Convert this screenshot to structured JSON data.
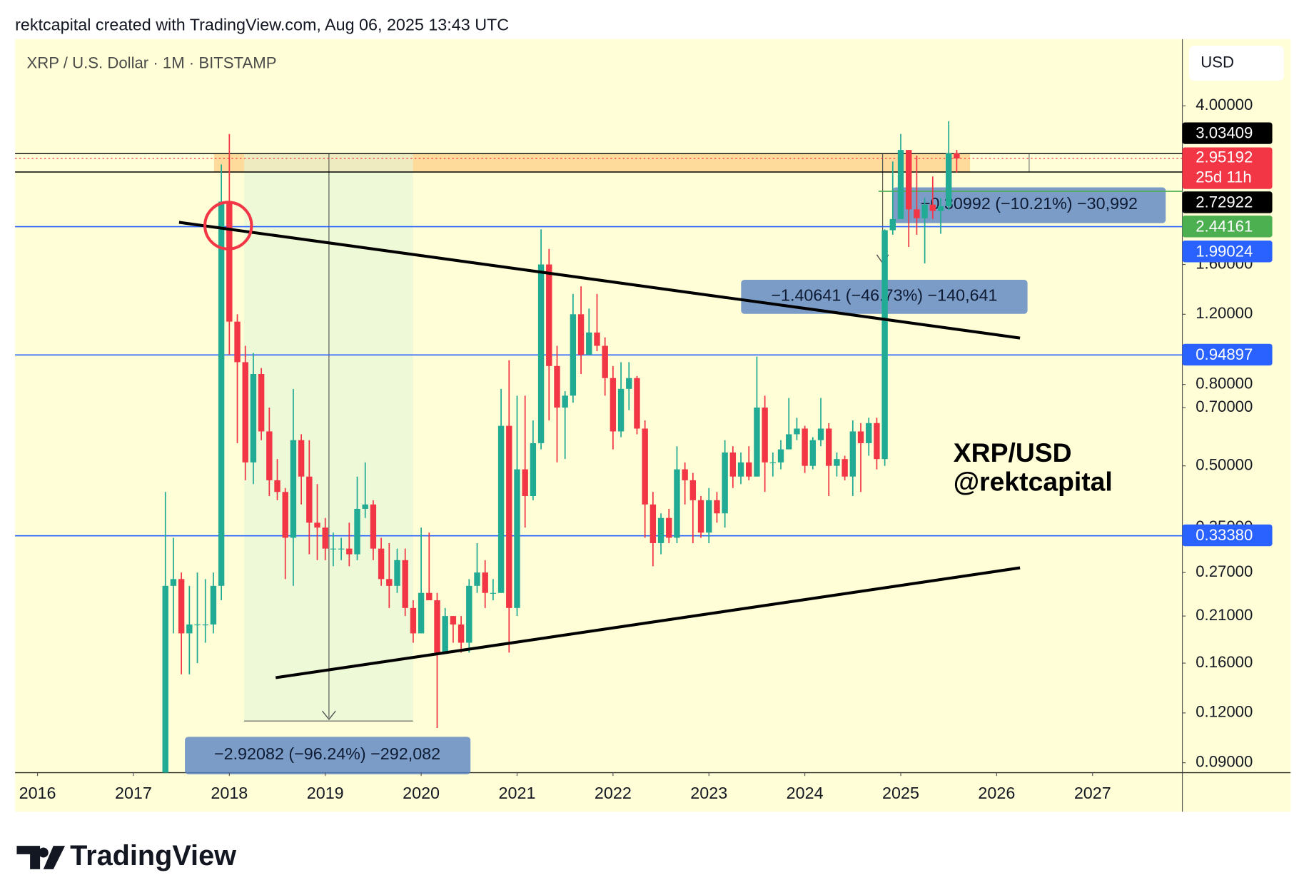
{
  "header": {
    "text": "rektcapital created with TradingView.com, Aug 06, 2025 13:43 UTC"
  },
  "footer": {
    "brand": "TradingView"
  },
  "chart_data": {
    "type": "candlestick",
    "title": "XRP / U.S. Dollar · 1M · BITSTAMP",
    "currency": "USD",
    "log_scale": true,
    "grid": false,
    "up_color": "#22ab94",
    "down_color": "#f23645",
    "xlim": [
      2015.766,
      2027.936
    ],
    "xticks": [
      2016,
      2017,
      2018,
      2019,
      2020,
      2021,
      2022,
      2023,
      2024,
      2025,
      2026,
      2027
    ],
    "ylim": [
      0.085,
      5.88
    ],
    "yticks": [
      {
        "value": 4.0,
        "label": "4.00000"
      },
      {
        "value": 1.6,
        "label": "1.60000"
      },
      {
        "value": 1.2,
        "label": "1.20000"
      },
      {
        "value": 0.8,
        "label": "0.80000"
      },
      {
        "value": 0.7,
        "label": "0.70000"
      },
      {
        "value": 0.5,
        "label": "0.50000"
      },
      {
        "value": 0.35,
        "label": "0.35000"
      },
      {
        "value": 0.27,
        "label": "0.27000"
      },
      {
        "value": 0.21,
        "label": "0.21000"
      },
      {
        "value": 0.16,
        "label": "0.16000"
      },
      {
        "value": 0.12,
        "label": "0.12000"
      },
      {
        "value": 0.09,
        "label": "0.09000"
      }
    ],
    "levels": [
      {
        "value": 3.03409,
        "label": "3.03409",
        "color": "#000000"
      },
      {
        "value": 2.72922,
        "label": "2.72922",
        "color": "#000000"
      },
      {
        "value": 2.44161,
        "label": "2.44161",
        "color": "#4caf50"
      },
      {
        "value": 1.99024,
        "label": "1.99024",
        "color": "#2962ff"
      },
      {
        "value": 0.94897,
        "label": "0.94897",
        "color": "#2962ff"
      },
      {
        "value": 0.3338,
        "label": "0.33380",
        "color": "#2962ff"
      }
    ],
    "countdown": "25d 11h",
    "annotations": [
      "−2.92082 (−96.24%) −292,082",
      "−1.40641 (−46.73%) −140,641",
      "−0.30992 (−10.21%) −30,992",
      "XRP/USD",
      "@rektcapital"
    ],
    "x": [
      "2017-05",
      "2017-06",
      "2017-07",
      "2017-08",
      "2017-09",
      "2017-10",
      "2017-11",
      "2017-12",
      "2018-01",
      "2018-02",
      "2018-03",
      "2018-04",
      "2018-05",
      "2018-06",
      "2018-07",
      "2018-08",
      "2018-09",
      "2018-10",
      "2018-11",
      "2018-12",
      "2019-01",
      "2019-02",
      "2019-03",
      "2019-04",
      "2019-05",
      "2019-06",
      "2019-07",
      "2019-08",
      "2019-09",
      "2019-10",
      "2019-11",
      "2019-12",
      "2020-01",
      "2020-02",
      "2020-03",
      "2020-04",
      "2020-05",
      "2020-06",
      "2020-07",
      "2020-08",
      "2020-09",
      "2020-10",
      "2020-11",
      "2020-12",
      "2021-01",
      "2021-02",
      "2021-03",
      "2021-04",
      "2021-05",
      "2021-06",
      "2021-07",
      "2021-08",
      "2021-09",
      "2021-10",
      "2021-11",
      "2021-12",
      "2022-01",
      "2022-02",
      "2022-03",
      "2022-04",
      "2022-05",
      "2022-06",
      "2022-07",
      "2022-08",
      "2022-09",
      "2022-10",
      "2022-11",
      "2022-12",
      "2023-01",
      "2023-02",
      "2023-03",
      "2023-04",
      "2023-05",
      "2023-06",
      "2023-07",
      "2023-08",
      "2023-09",
      "2023-10",
      "2023-11",
      "2023-12",
      "2024-01",
      "2024-02",
      "2024-03",
      "2024-04",
      "2024-05",
      "2024-06",
      "2024-07",
      "2024-08",
      "2024-09",
      "2024-10",
      "2024-11",
      "2024-12",
      "2025-01",
      "2025-02",
      "2025-03",
      "2025-04",
      "2025-05",
      "2025-06",
      "2025-07",
      "2025-08"
    ],
    "ohlc": [
      [
        0.055,
        0.43,
        0.05,
        0.25
      ],
      [
        0.25,
        0.33,
        0.19,
        0.26
      ],
      [
        0.26,
        0.27,
        0.15,
        0.19
      ],
      [
        0.19,
        0.25,
        0.15,
        0.2
      ],
      [
        0.2,
        0.27,
        0.16,
        0.2
      ],
      [
        0.2,
        0.26,
        0.18,
        0.2
      ],
      [
        0.2,
        0.27,
        0.19,
        0.25
      ],
      [
        0.25,
        2.85,
        0.23,
        2.3
      ],
      [
        2.3,
        3.4,
        0.95,
        1.15
      ],
      [
        1.15,
        1.2,
        0.57,
        0.91
      ],
      [
        0.91,
        1.0,
        0.46,
        0.51
      ],
      [
        0.51,
        0.96,
        0.45,
        0.85
      ],
      [
        0.85,
        0.88,
        0.58,
        0.61
      ],
      [
        0.61,
        0.7,
        0.42,
        0.46
      ],
      [
        0.46,
        0.52,
        0.41,
        0.43
      ],
      [
        0.43,
        0.44,
        0.26,
        0.33
      ],
      [
        0.33,
        0.78,
        0.25,
        0.58
      ],
      [
        0.58,
        0.6,
        0.4,
        0.47
      ],
      [
        0.47,
        0.58,
        0.3,
        0.36
      ],
      [
        0.36,
        0.45,
        0.29,
        0.35
      ],
      [
        0.35,
        0.37,
        0.29,
        0.31
      ],
      [
        0.31,
        0.34,
        0.28,
        0.31
      ],
      [
        0.31,
        0.33,
        0.29,
        0.31
      ],
      [
        0.31,
        0.36,
        0.28,
        0.3
      ],
      [
        0.3,
        0.47,
        0.29,
        0.39
      ],
      [
        0.39,
        0.51,
        0.37,
        0.4
      ],
      [
        0.4,
        0.41,
        0.29,
        0.31
      ],
      [
        0.31,
        0.33,
        0.25,
        0.26
      ],
      [
        0.26,
        0.32,
        0.22,
        0.25
      ],
      [
        0.25,
        0.31,
        0.24,
        0.29
      ],
      [
        0.29,
        0.31,
        0.21,
        0.22
      ],
      [
        0.22,
        0.23,
        0.18,
        0.19
      ],
      [
        0.19,
        0.35,
        0.19,
        0.24
      ],
      [
        0.24,
        0.34,
        0.23,
        0.23
      ],
      [
        0.23,
        0.24,
        0.11,
        0.17
      ],
      [
        0.17,
        0.22,
        0.17,
        0.21
      ],
      [
        0.21,
        0.21,
        0.18,
        0.2
      ],
      [
        0.2,
        0.21,
        0.17,
        0.18
      ],
      [
        0.18,
        0.26,
        0.17,
        0.25
      ],
      [
        0.25,
        0.32,
        0.24,
        0.27
      ],
      [
        0.27,
        0.29,
        0.22,
        0.24
      ],
      [
        0.24,
        0.26,
        0.23,
        0.24
      ],
      [
        0.24,
        0.78,
        0.24,
        0.63
      ],
      [
        0.63,
        0.92,
        0.17,
        0.22
      ],
      [
        0.22,
        0.75,
        0.21,
        0.49
      ],
      [
        0.49,
        0.75,
        0.35,
        0.42
      ],
      [
        0.42,
        0.65,
        0.41,
        0.57
      ],
      [
        0.57,
        1.96,
        0.55,
        1.6
      ],
      [
        1.6,
        1.75,
        0.65,
        0.89
      ],
      [
        0.89,
        1.0,
        0.51,
        0.7
      ],
      [
        0.7,
        0.77,
        0.52,
        0.75
      ],
      [
        0.75,
        1.35,
        0.72,
        1.2
      ],
      [
        1.2,
        1.41,
        0.85,
        0.95
      ],
      [
        0.95,
        1.24,
        0.95,
        1.08
      ],
      [
        1.08,
        1.35,
        0.97,
        1.0
      ],
      [
        1.0,
        1.05,
        0.75,
        0.83
      ],
      [
        0.83,
        0.89,
        0.55,
        0.61
      ],
      [
        0.61,
        0.91,
        0.59,
        0.78
      ],
      [
        0.78,
        0.91,
        0.69,
        0.83
      ],
      [
        0.83,
        0.84,
        0.6,
        0.62
      ],
      [
        0.62,
        0.65,
        0.33,
        0.4
      ],
      [
        0.4,
        0.43,
        0.28,
        0.32
      ],
      [
        0.32,
        0.38,
        0.3,
        0.37
      ],
      [
        0.37,
        0.39,
        0.32,
        0.33
      ],
      [
        0.33,
        0.56,
        0.32,
        0.49
      ],
      [
        0.49,
        0.51,
        0.4,
        0.46
      ],
      [
        0.46,
        0.48,
        0.32,
        0.41
      ],
      [
        0.41,
        0.42,
        0.33,
        0.34
      ],
      [
        0.34,
        0.44,
        0.32,
        0.41
      ],
      [
        0.41,
        0.43,
        0.36,
        0.38
      ],
      [
        0.38,
        0.58,
        0.35,
        0.54
      ],
      [
        0.54,
        0.56,
        0.44,
        0.47
      ],
      [
        0.47,
        0.54,
        0.45,
        0.51
      ],
      [
        0.51,
        0.56,
        0.46,
        0.47
      ],
      [
        0.47,
        0.94,
        0.47,
        0.7
      ],
      [
        0.7,
        0.75,
        0.43,
        0.51
      ],
      [
        0.51,
        0.54,
        0.47,
        0.51
      ],
      [
        0.51,
        0.58,
        0.49,
        0.55
      ],
      [
        0.55,
        0.74,
        0.55,
        0.6
      ],
      [
        0.6,
        0.66,
        0.58,
        0.62
      ],
      [
        0.62,
        0.63,
        0.48,
        0.5
      ],
      [
        0.5,
        0.59,
        0.49,
        0.58
      ],
      [
        0.58,
        0.74,
        0.56,
        0.62
      ],
      [
        0.62,
        0.64,
        0.42,
        0.5
      ],
      [
        0.5,
        0.54,
        0.47,
        0.52
      ],
      [
        0.52,
        0.53,
        0.46,
        0.47
      ],
      [
        0.47,
        0.65,
        0.42,
        0.61
      ],
      [
        0.61,
        0.64,
        0.43,
        0.57
      ],
      [
        0.57,
        0.66,
        0.53,
        0.64
      ],
      [
        0.64,
        0.66,
        0.49,
        0.52
      ],
      [
        0.52,
        1.96,
        0.5,
        1.95
      ],
      [
        1.95,
        2.9,
        1.9,
        2.08
      ],
      [
        2.08,
        3.4,
        2.08,
        3.1
      ],
      [
        3.1,
        3.1,
        1.77,
        2.2
      ],
      [
        2.2,
        3.0,
        1.9,
        2.09
      ],
      [
        2.09,
        2.35,
        1.61,
        2.26
      ],
      [
        2.26,
        2.66,
        2.08,
        2.18
      ],
      [
        2.18,
        2.35,
        1.91,
        2.24
      ],
      [
        2.24,
        3.66,
        2.19,
        3.04
      ],
      [
        3.04,
        3.1,
        2.72,
        2.95192
      ]
    ]
  }
}
